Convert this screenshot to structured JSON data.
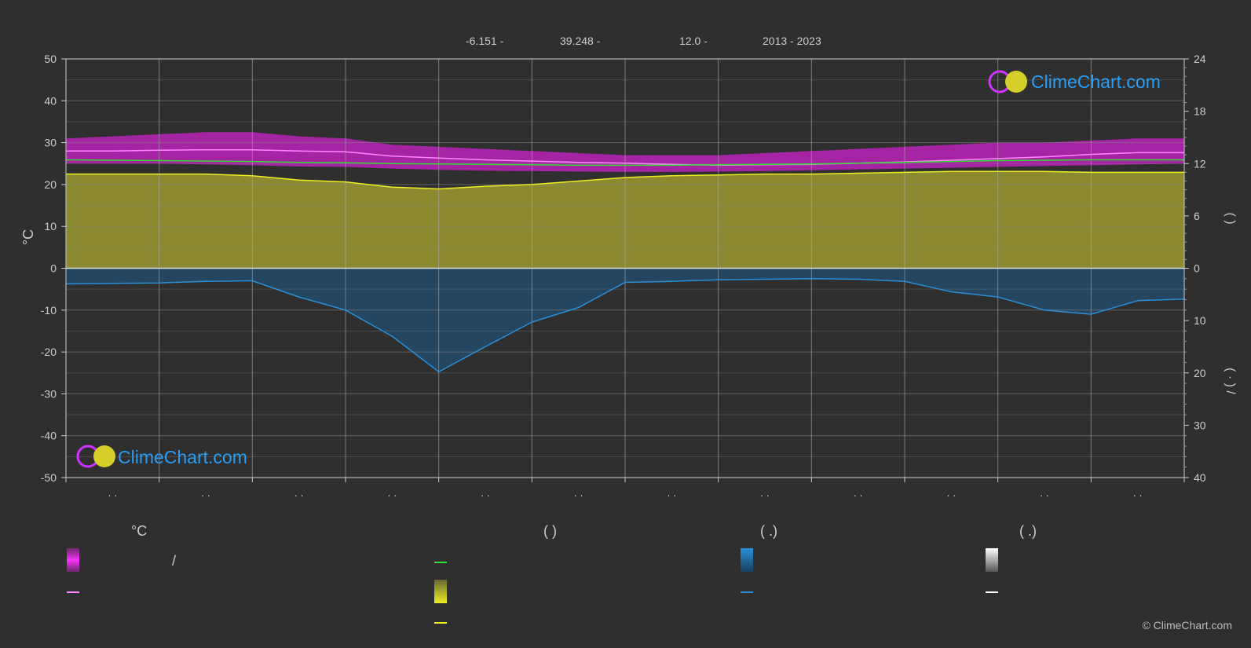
{
  "header": {
    "latitude": "-6.151 -",
    "longitude": "39.248 -",
    "elevation": "12.0 -",
    "years": "2013 - 2023"
  },
  "logo_text": "ClimeChart.com",
  "copyright": "© ClimeChart.com",
  "colors": {
    "background": "#2f2f2f",
    "grid": "#5a5a5a",
    "temp_band": "#cc22cc",
    "max_line": "#ff88ff",
    "mean_line": "#33dd33",
    "sunshine_fill": "#9c9a30",
    "sunshine_line": "#eeee22",
    "precip_line": "#2a8fd8",
    "precip_fill": "#1c5a8a",
    "logo_blue": "#2a9df4"
  },
  "legend": {
    "col1_header": "°C",
    "col1_sep": "/",
    "col2_header": "(          )",
    "col3_header": "(   .)",
    "col4_header": "(   .)"
  },
  "chart_data": {
    "type": "line",
    "title": "",
    "months": 12,
    "x_tick_labels": [
      ". .",
      ". .",
      ". .",
      ". .",
      ". .",
      ". .",
      ". .",
      ". .",
      ". .",
      ". .",
      ". .",
      ". ."
    ],
    "left_axis": {
      "label": "°C",
      "ylim": [
        -50,
        50
      ],
      "ticks": [
        50,
        40,
        30,
        20,
        10,
        0,
        -10,
        -20,
        -30,
        -40,
        -50
      ]
    },
    "right_axis_top": {
      "label": "(   )",
      "ylim": [
        0,
        24
      ],
      "ticks": [
        24,
        18,
        12,
        6,
        0
      ]
    },
    "right_axis_bottom": {
      "label": "(  ·  )  /",
      "ylim": [
        0,
        40
      ],
      "ticks": [
        0,
        10,
        20,
        30,
        40
      ]
    },
    "x": [
      0,
      0.5,
      1,
      1.5,
      2,
      2.5,
      3,
      3.5,
      4,
      4.5,
      5,
      5.5,
      6,
      6.5,
      7,
      7.5,
      8,
      8.5,
      9,
      9.5,
      10,
      10.5,
      11,
      11.5,
      12
    ],
    "series": [
      {
        "key": "max_temp",
        "values": [
          28,
          28,
          28.2,
          28.3,
          28.3,
          28,
          27.8,
          26.8,
          26.3,
          25.9,
          25.6,
          25.3,
          25.1,
          24.8,
          24.6,
          24.7,
          24.8,
          25.1,
          25.4,
          25.8,
          26.2,
          26.6,
          27.2,
          27.6,
          27.6
        ]
      },
      {
        "key": "mean_temp",
        "values": [
          25.9,
          25.8,
          25.7,
          25.6,
          25.5,
          25.3,
          25.2,
          25.0,
          24.9,
          24.8,
          24.7,
          24.6,
          24.6,
          24.6,
          24.7,
          24.8,
          24.9,
          25.1,
          25.3,
          25.5,
          25.7,
          25.8,
          25.9,
          25.9,
          25.9
        ]
      },
      {
        "key": "sunshine_hours",
        "values": [
          10.8,
          10.8,
          10.8,
          10.8,
          10.6,
          10.1,
          9.9,
          9.3,
          9.1,
          9.4,
          9.6,
          10.0,
          10.4,
          10.6,
          10.7,
          10.8,
          10.8,
          10.9,
          11.0,
          11.1,
          11.1,
          11.1,
          11.0,
          11.0,
          11.0
        ]
      },
      {
        "key": "precip_mm",
        "values": [
          3.0,
          2.9,
          2.8,
          2.5,
          2.4,
          5.5,
          8.0,
          13,
          19.8,
          15,
          10.3,
          7.5,
          2.7,
          2.5,
          2.2,
          2.1,
          2.0,
          2.1,
          2.5,
          4.5,
          5.5,
          8,
          8.8,
          6.2,
          5.9
        ]
      }
    ],
    "temp_band": {
      "upper": [
        31,
        31.5,
        32,
        32.5,
        32.5,
        31.5,
        31,
        29.5,
        29,
        28.5,
        28,
        27.5,
        27,
        27,
        27,
        27.5,
        28,
        28.5,
        29,
        29.5,
        30,
        30,
        30.5,
        31,
        31
      ],
      "lower": [
        25,
        25,
        25,
        24.8,
        24.6,
        24.3,
        24.2,
        23.8,
        23.5,
        23.3,
        23.2,
        23.1,
        23.0,
        23.0,
        23.1,
        23.2,
        23.4,
        23.6,
        23.8,
        24.0,
        24.2,
        24.4,
        24.6,
        24.8,
        25
      ]
    }
  }
}
